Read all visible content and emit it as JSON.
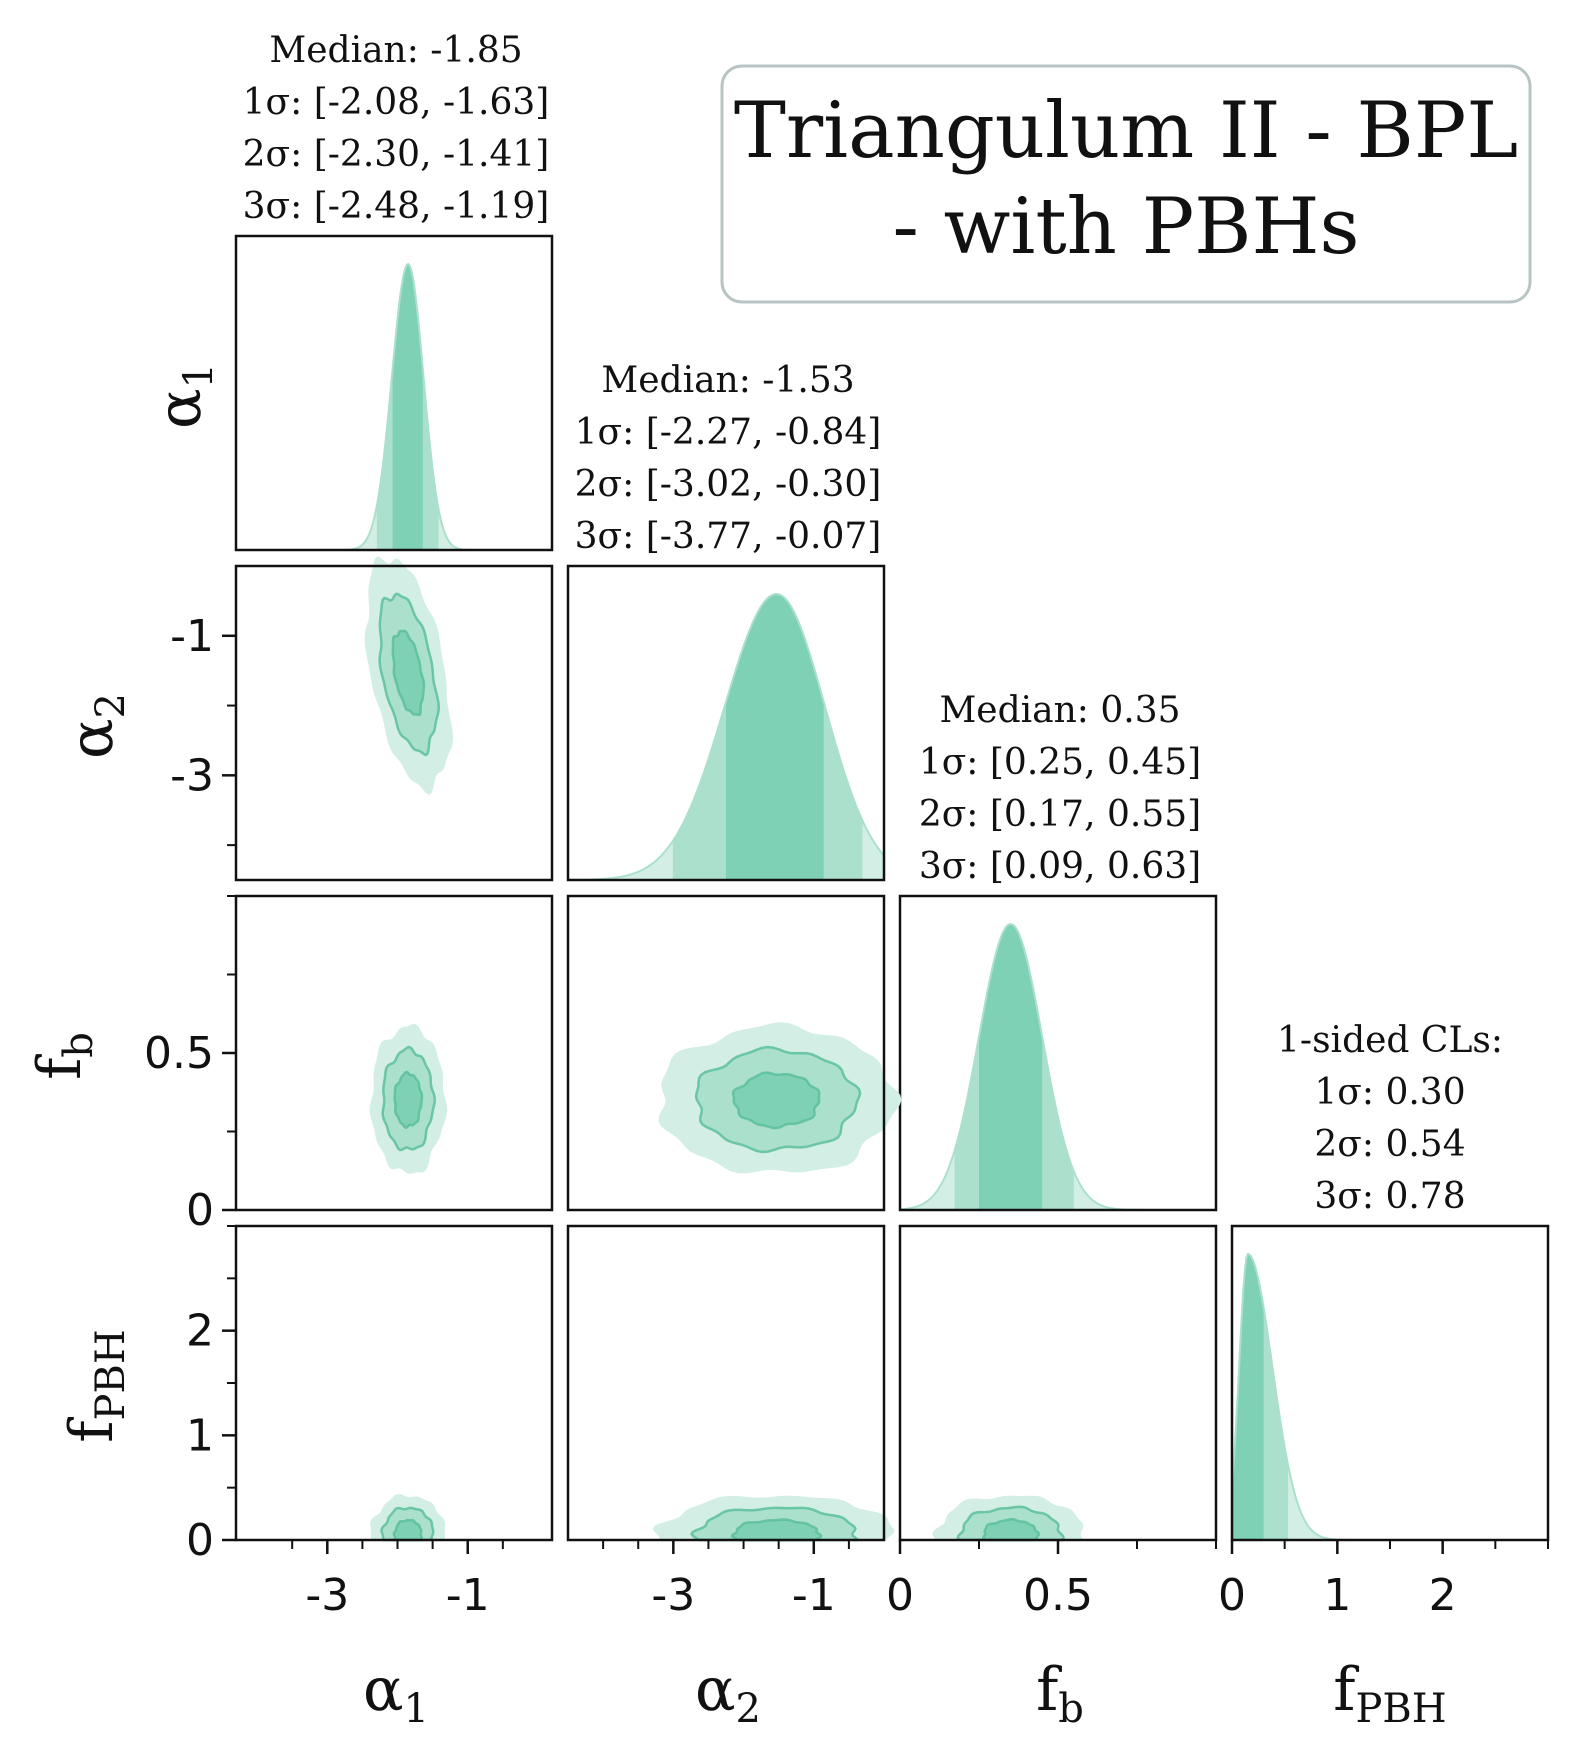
{
  "chart_data": {
    "type": "corner",
    "title_lines": [
      "Triangulum II - BPL",
      "- with PBHs"
    ],
    "parameters": [
      {
        "key": "alpha1",
        "symbol": "α",
        "sub": "1",
        "range": [
          -4.3,
          0.2
        ]
      },
      {
        "key": "alpha2",
        "symbol": "α",
        "sub": "2",
        "range": [
          -4.5,
          0.0
        ]
      },
      {
        "key": "fb",
        "symbol": "f",
        "sub": "b",
        "range": [
          0.0,
          1.0
        ]
      },
      {
        "key": "fpbh",
        "symbol": "f",
        "sub": "PBH",
        "range": [
          0.0,
          3.0
        ]
      }
    ],
    "ticks": {
      "alpha1": {
        "labels": [
          "-3",
          "-1"
        ],
        "values": [
          -3,
          -1
        ],
        "minor": [
          -3.5,
          -2.5,
          -2,
          -1.5,
          -0.5
        ]
      },
      "alpha2": {
        "labels": [
          "-3",
          "-1"
        ],
        "values": [
          -3,
          -1
        ],
        "minor": [
          -4,
          -3.5,
          -2.5,
          -2,
          -1.5,
          -0.5
        ]
      },
      "fb": {
        "labels": [
          "0",
          "0.5"
        ],
        "values": [
          0,
          0.5
        ],
        "minor": [
          0.25,
          0.75,
          1.0
        ]
      },
      "fpbh": {
        "labels": [
          "0",
          "1",
          "2"
        ],
        "values": [
          0,
          1,
          2
        ],
        "minor": [
          0.5,
          1.5,
          2.5,
          3.0
        ]
      }
    },
    "y_ticks": {
      "alpha2": {
        "labels": [
          "-1",
          "-3"
        ],
        "values": [
          -1,
          -3
        ],
        "minor": [
          -2,
          -4
        ]
      },
      "fb": {
        "labels": [
          "0.5",
          "0"
        ],
        "values": [
          0.5,
          0
        ],
        "minor": [
          0.25,
          0.75,
          1.0
        ]
      },
      "fpbh": {
        "labels": [
          "2",
          "1",
          "0"
        ],
        "values": [
          2,
          1,
          0
        ],
        "minor": [
          0.5,
          1.5,
          2.5,
          3.0
        ]
      }
    },
    "marginals": [
      {
        "param": "alpha1",
        "lines": [
          "Median: -1.85",
          "1σ: [-2.08, -1.63]",
          "2σ: [-2.30, -1.41]",
          "3σ: [-2.48, -1.19]"
        ],
        "median": -1.85,
        "s1": [
          -2.08,
          -1.63
        ],
        "s2": [
          -2.3,
          -1.41
        ],
        "s3": [
          -2.48,
          -1.19
        ]
      },
      {
        "param": "alpha2",
        "lines": [
          "Median: -1.53",
          "1σ: [-2.27, -0.84]",
          "2σ: [-3.02, -0.30]",
          "3σ: [-3.77, -0.07]"
        ],
        "median": -1.53,
        "s1": [
          -2.27,
          -0.84
        ],
        "s2": [
          -3.02,
          -0.3
        ],
        "s3": [
          -3.77,
          -0.07
        ]
      },
      {
        "param": "fb",
        "lines": [
          "Median: 0.35",
          "1σ: [0.25, 0.45]",
          "2σ: [0.17, 0.55]",
          "3σ: [0.09, 0.63]"
        ],
        "median": 0.35,
        "s1": [
          0.25,
          0.45
        ],
        "s2": [
          0.17,
          0.55
        ],
        "s3": [
          0.09,
          0.63
        ]
      },
      {
        "param": "fpbh",
        "lines": [
          "1-sided CLs:",
          "1σ: 0.30",
          "2σ: 0.54",
          "3σ: 0.78"
        ],
        "one_sided": true,
        "s1": [
          0,
          0.3
        ],
        "s2": [
          0,
          0.54
        ],
        "s3": [
          0,
          0.78
        ],
        "mode": 0.15
      }
    ],
    "colors": {
      "s1": "#7fd1b6",
      "s2": "#abe0cd",
      "s3": "#d3efe5",
      "line": "#5cbf9b",
      "frame": "#111111"
    }
  }
}
